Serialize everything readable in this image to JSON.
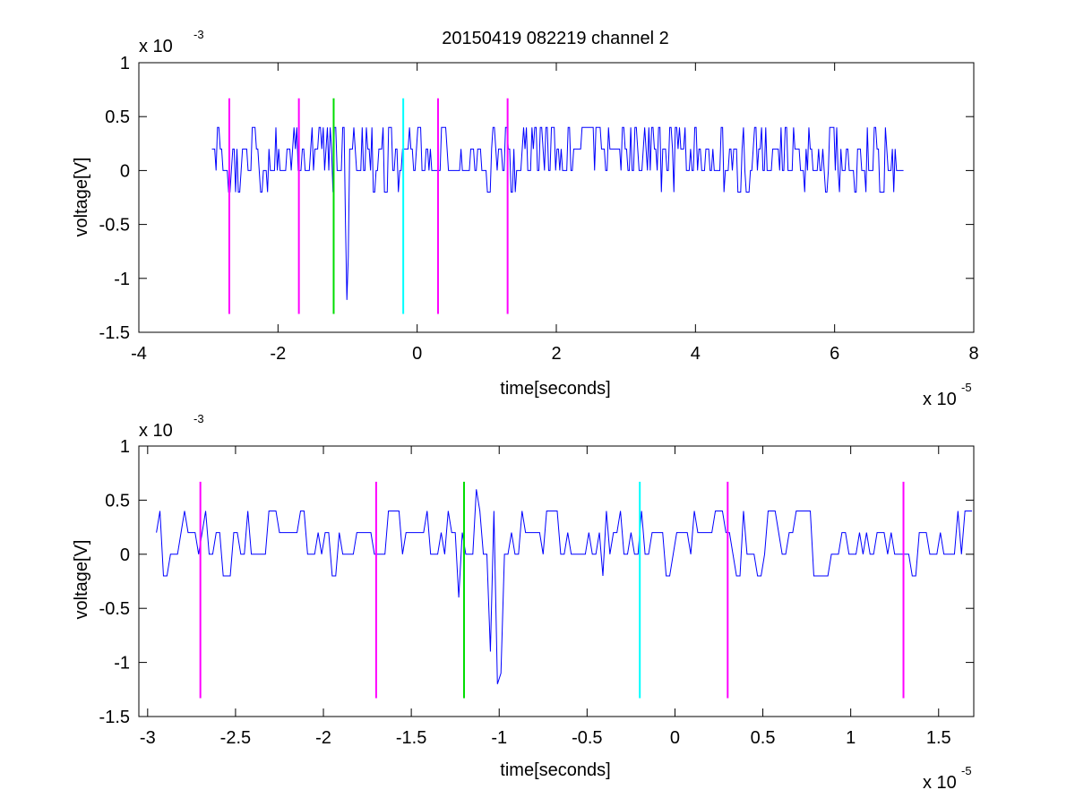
{
  "chart_data": [
    {
      "type": "line",
      "title": "20150419 082219 channel 2",
      "xlabel": "time[seconds]",
      "ylabel": "voltage[V]",
      "x_scale_label": "x 10",
      "x_scale_exp": "-5",
      "y_scale_label": "x 10",
      "y_scale_exp": "-3",
      "xlim": [
        -4,
        8
      ],
      "ylim": [
        -1.5,
        1
      ],
      "xticks": [
        -4,
        -2,
        0,
        2,
        4,
        6,
        8
      ],
      "xtick_labels": [
        "-4",
        "-2",
        "0",
        "2",
        "4",
        "6",
        "8"
      ],
      "yticks": [
        1,
        0.5,
        0,
        -0.5,
        -1,
        -1.5
      ],
      "ytick_labels": [
        "1",
        "0.5",
        "0",
        "-0.5",
        "-1",
        "-1.5"
      ],
      "grid": false,
      "series": [
        {
          "color": "#0000ff",
          "signal": {
            "x_start": -2.95,
            "x_end": 7.0,
            "step": 0.02,
            "levels": [
              -0.2,
              0,
              0.2,
              0.4
            ],
            "baseline": 0.2,
            "events": [
              {
                "x": -1.0,
                "y": -1.2
              },
              {
                "x": -0.98,
                "y": -0.8
              },
              {
                "x": -1.02,
                "y": -0.5
              },
              {
                "x": -1.2,
                "y": -0.2
              }
            ]
          }
        }
      ],
      "markers": [
        {
          "x": -2.7,
          "y_range": [
            -1.33,
            0.67
          ],
          "color": "#ff00ff"
        },
        {
          "x": -1.7,
          "y_range": [
            -1.33,
            0.67
          ],
          "color": "#ff00ff"
        },
        {
          "x": -1.2,
          "y_range": [
            -1.33,
            0.67
          ],
          "color": "#00dd00"
        },
        {
          "x": -0.2,
          "y_range": [
            -1.33,
            0.67
          ],
          "color": "#00ffff"
        },
        {
          "x": 0.3,
          "y_range": [
            -1.33,
            0.67
          ],
          "color": "#ff00ff"
        },
        {
          "x": 1.3,
          "y_range": [
            -1.33,
            0.67
          ],
          "color": "#ff00ff"
        }
      ]
    },
    {
      "type": "line",
      "xlabel": "time[seconds]",
      "ylabel": "voltage[V]",
      "x_scale_label": "x 10",
      "x_scale_exp": "-5",
      "y_scale_label": "x 10",
      "y_scale_exp": "-3",
      "xlim": [
        -3.05,
        1.7
      ],
      "ylim": [
        -1.5,
        1
      ],
      "xticks": [
        -3,
        -2.5,
        -2,
        -1.5,
        -1,
        -0.5,
        0,
        0.5,
        1,
        1.5
      ],
      "xtick_labels": [
        "-3",
        "-2.5",
        "-2",
        "-1.5",
        "-1",
        "-0.5",
        "0",
        "0.5",
        "1",
        "1.5"
      ],
      "yticks": [
        1,
        0.5,
        0,
        -0.5,
        -1,
        -1.5
      ],
      "ytick_labels": [
        "1",
        "0.5",
        "0",
        "-0.5",
        "-1",
        "-1.5"
      ],
      "grid": false,
      "series": [
        {
          "color": "#0000ff",
          "signal": {
            "x_start": -2.95,
            "x_end": 1.7,
            "step": 0.02,
            "levels": [
              -0.2,
              0,
              0.2,
              0.4
            ],
            "baseline": 0.2,
            "events": [
              {
                "x": -1.22,
                "y": -0.4
              },
              {
                "x": -1.12,
                "y": 0.6
              },
              {
                "x": -1.0,
                "y": -1.2
              },
              {
                "x": -0.98,
                "y": -1.1
              },
              {
                "x": -1.04,
                "y": -0.9
              }
            ]
          }
        }
      ],
      "markers": [
        {
          "x": -2.7,
          "y_range": [
            -1.33,
            0.67
          ],
          "color": "#ff00ff"
        },
        {
          "x": -1.7,
          "y_range": [
            -1.33,
            0.67
          ],
          "color": "#ff00ff"
        },
        {
          "x": -1.2,
          "y_range": [
            -1.33,
            0.67
          ],
          "color": "#00dd00"
        },
        {
          "x": -0.2,
          "y_range": [
            -1.33,
            0.67
          ],
          "color": "#00ffff"
        },
        {
          "x": 0.3,
          "y_range": [
            -1.33,
            0.67
          ],
          "color": "#ff00ff"
        },
        {
          "x": 1.3,
          "y_range": [
            -1.33,
            0.67
          ],
          "color": "#ff00ff"
        }
      ]
    }
  ]
}
